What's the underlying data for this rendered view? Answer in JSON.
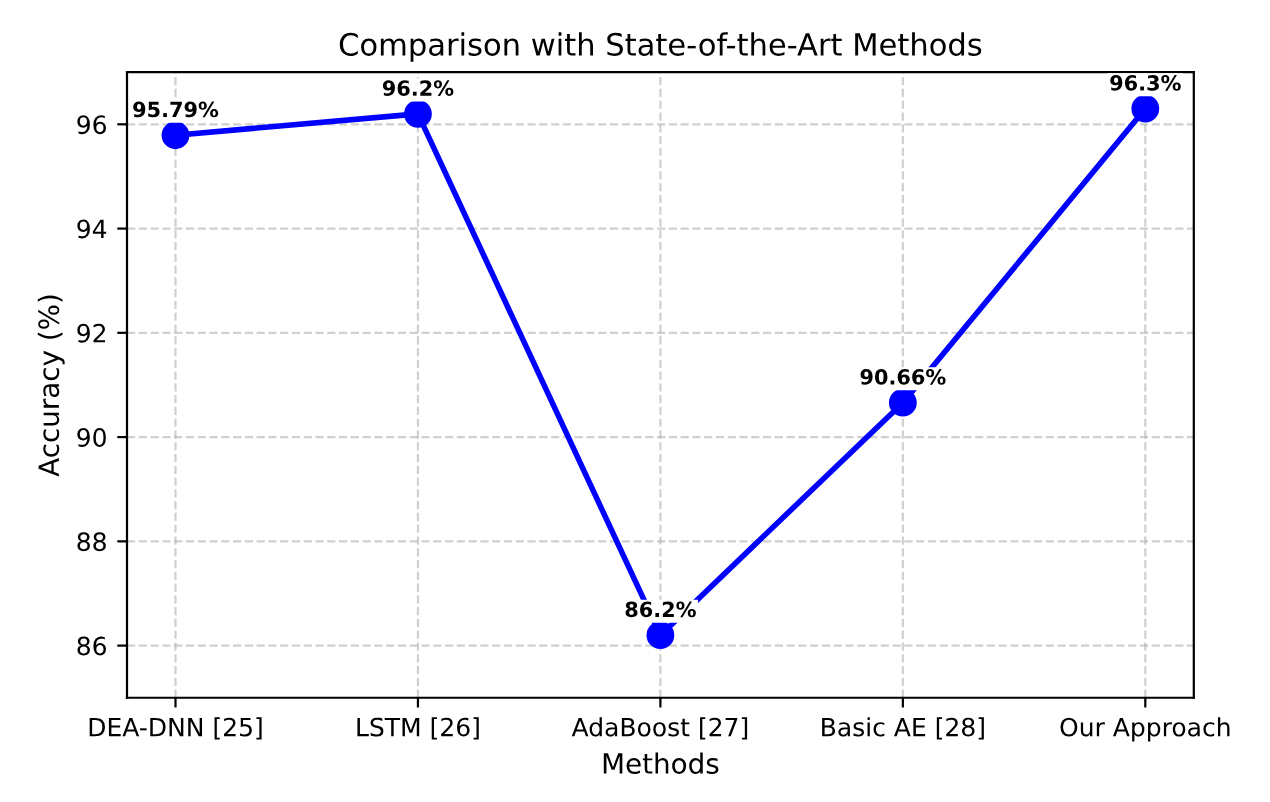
{
  "chart_data": {
    "type": "line",
    "title": "Comparison with State-of-the-Art Methods",
    "xlabel": "Methods",
    "ylabel": "Accuracy (%)",
    "categories": [
      "DEA-DNN [25]",
      "LSTM [26]",
      "AdaBoost [27]",
      "Basic AE [28]",
      "Our Approach"
    ],
    "series": [
      {
        "color": "#0000ff",
        "values": [
          95.79,
          96.2,
          86.2,
          90.66,
          96.3
        ],
        "value_labels": [
          "95.79%",
          "96.2%",
          "86.2%",
          "90.66%",
          "96.3%"
        ]
      }
    ],
    "ylim": [
      85,
      97
    ],
    "yticks": [
      86,
      88,
      90,
      92,
      94,
      96
    ],
    "grid": true,
    "marker": "circle",
    "line_style": "solid"
  }
}
